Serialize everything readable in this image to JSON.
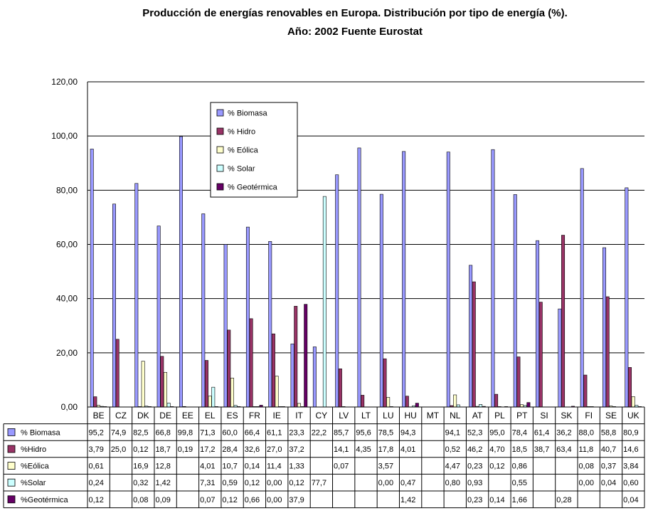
{
  "chart_data": {
    "type": "bar",
    "title": "Producción de energías renovables en Europa. Distribución por tipo de energía (%).",
    "subtitle": "Año: 2002 Fuente Eurostat",
    "ylim": [
      0,
      120
    ],
    "yticks": [
      "0,00",
      "20,00",
      "40,00",
      "60,00",
      "80,00",
      "100,00",
      "120,00"
    ],
    "grid": true,
    "legend_placement": "top-left inside plot",
    "categories": [
      "BE",
      "CZ",
      "DK",
      "DE",
      "EE",
      "EL",
      "ES",
      "FR",
      "IE",
      "IT",
      "CY",
      "LV",
      "LT",
      "LU",
      "HU",
      "MT",
      "NL",
      "AT",
      "PL",
      "PT",
      "SI",
      "SK",
      "FI",
      "SE",
      "UK"
    ],
    "series": [
      {
        "name": "% Biomasa",
        "table_label": "% Biomasa",
        "color": "#9999ff",
        "values": [
          95.2,
          74.9,
          82.5,
          66.8,
          99.8,
          71.3,
          60.0,
          66.4,
          61.1,
          23.3,
          22.2,
          85.7,
          95.6,
          78.5,
          94.3,
          null,
          94.1,
          52.3,
          95.0,
          78.4,
          61.4,
          36.2,
          88.0,
          58.8,
          80.9
        ],
        "labels": [
          "95,2",
          "74,9",
          "82,5",
          "66,8",
          "99,8",
          "71,3",
          "60,0",
          "66,4",
          "61,1",
          "23,3",
          "22,2",
          "85,7",
          "95,6",
          "78,5",
          "94,3",
          "",
          "94,1",
          "52,3",
          "95,0",
          "78,4",
          "61,4",
          "36,2",
          "88,0",
          "58,8",
          "80,9"
        ]
      },
      {
        "name": "% Hidro",
        "table_label": "%Hidro",
        "color": "#993366",
        "values": [
          3.79,
          25.0,
          0.12,
          18.7,
          0.19,
          17.2,
          28.4,
          32.6,
          27.0,
          37.2,
          null,
          14.1,
          4.35,
          17.8,
          4.01,
          null,
          0.52,
          46.2,
          4.7,
          18.5,
          38.7,
          63.4,
          11.8,
          40.7,
          14.6
        ],
        "labels": [
          "3,79",
          "25,0",
          "0,12",
          "18,7",
          "0,19",
          "17,2",
          "28,4",
          "32,6",
          "27,0",
          "37,2",
          "",
          "14,1",
          "4,35",
          "17,8",
          "4,01",
          "",
          "0,52",
          "46,2",
          "4,70",
          "18,5",
          "38,7",
          "63,4",
          "11,8",
          "40,7",
          "14,6"
        ]
      },
      {
        "name": "% Eólica",
        "table_label": "%Eólica",
        "color": "#ffffcc",
        "values": [
          0.61,
          null,
          16.9,
          12.8,
          null,
          4.01,
          10.7,
          0.14,
          11.4,
          1.33,
          null,
          0.07,
          null,
          3.57,
          null,
          null,
          4.47,
          0.23,
          0.12,
          0.86,
          null,
          null,
          0.08,
          0.37,
          3.84
        ],
        "labels": [
          "0,61",
          "",
          "16,9",
          "12,8",
          "",
          "4,01",
          "10,7",
          "0,14",
          "11,4",
          "1,33",
          "",
          "0,07",
          "",
          "3,57",
          "",
          "",
          "4,47",
          "0,23",
          "0,12",
          "0,86",
          "",
          "",
          "0,08",
          "0,37",
          "3,84"
        ]
      },
      {
        "name": "% Solar",
        "table_label": "%Solar",
        "color": "#ccffff",
        "values": [
          0.24,
          null,
          0.32,
          1.42,
          null,
          7.31,
          0.59,
          0.12,
          0.0,
          0.12,
          77.7,
          null,
          null,
          0.0,
          0.47,
          null,
          0.8,
          0.93,
          null,
          0.55,
          null,
          null,
          0.0,
          0.04,
          0.6
        ],
        "labels": [
          "0,24",
          "",
          "0,32",
          "1,42",
          "",
          "7,31",
          "0,59",
          "0,12",
          "0,00",
          "0,12",
          "77,7",
          "",
          "",
          "0,00",
          "0,47",
          "",
          "0,80",
          "0,93",
          "",
          "0,55",
          "",
          "",
          "0,00",
          "0,04",
          "0,60"
        ]
      },
      {
        "name": "% Geotérmica",
        "table_label": "%Geotérmica",
        "color": "#660066",
        "values": [
          0.12,
          null,
          0.08,
          0.09,
          null,
          0.07,
          0.12,
          0.66,
          0.0,
          37.9,
          null,
          null,
          null,
          null,
          1.42,
          null,
          null,
          0.23,
          0.14,
          1.66,
          null,
          0.28,
          null,
          null,
          0.04
        ],
        "labels": [
          "0,12",
          "",
          "0,08",
          "0,09",
          "",
          "0,07",
          "0,12",
          "0,66",
          "0,00",
          "37,9",
          "",
          "",
          "",
          "",
          "1,42",
          "",
          "",
          "0,23",
          "0,14",
          "1,66",
          "",
          "0,28",
          "",
          "",
          "0,04"
        ]
      }
    ]
  }
}
